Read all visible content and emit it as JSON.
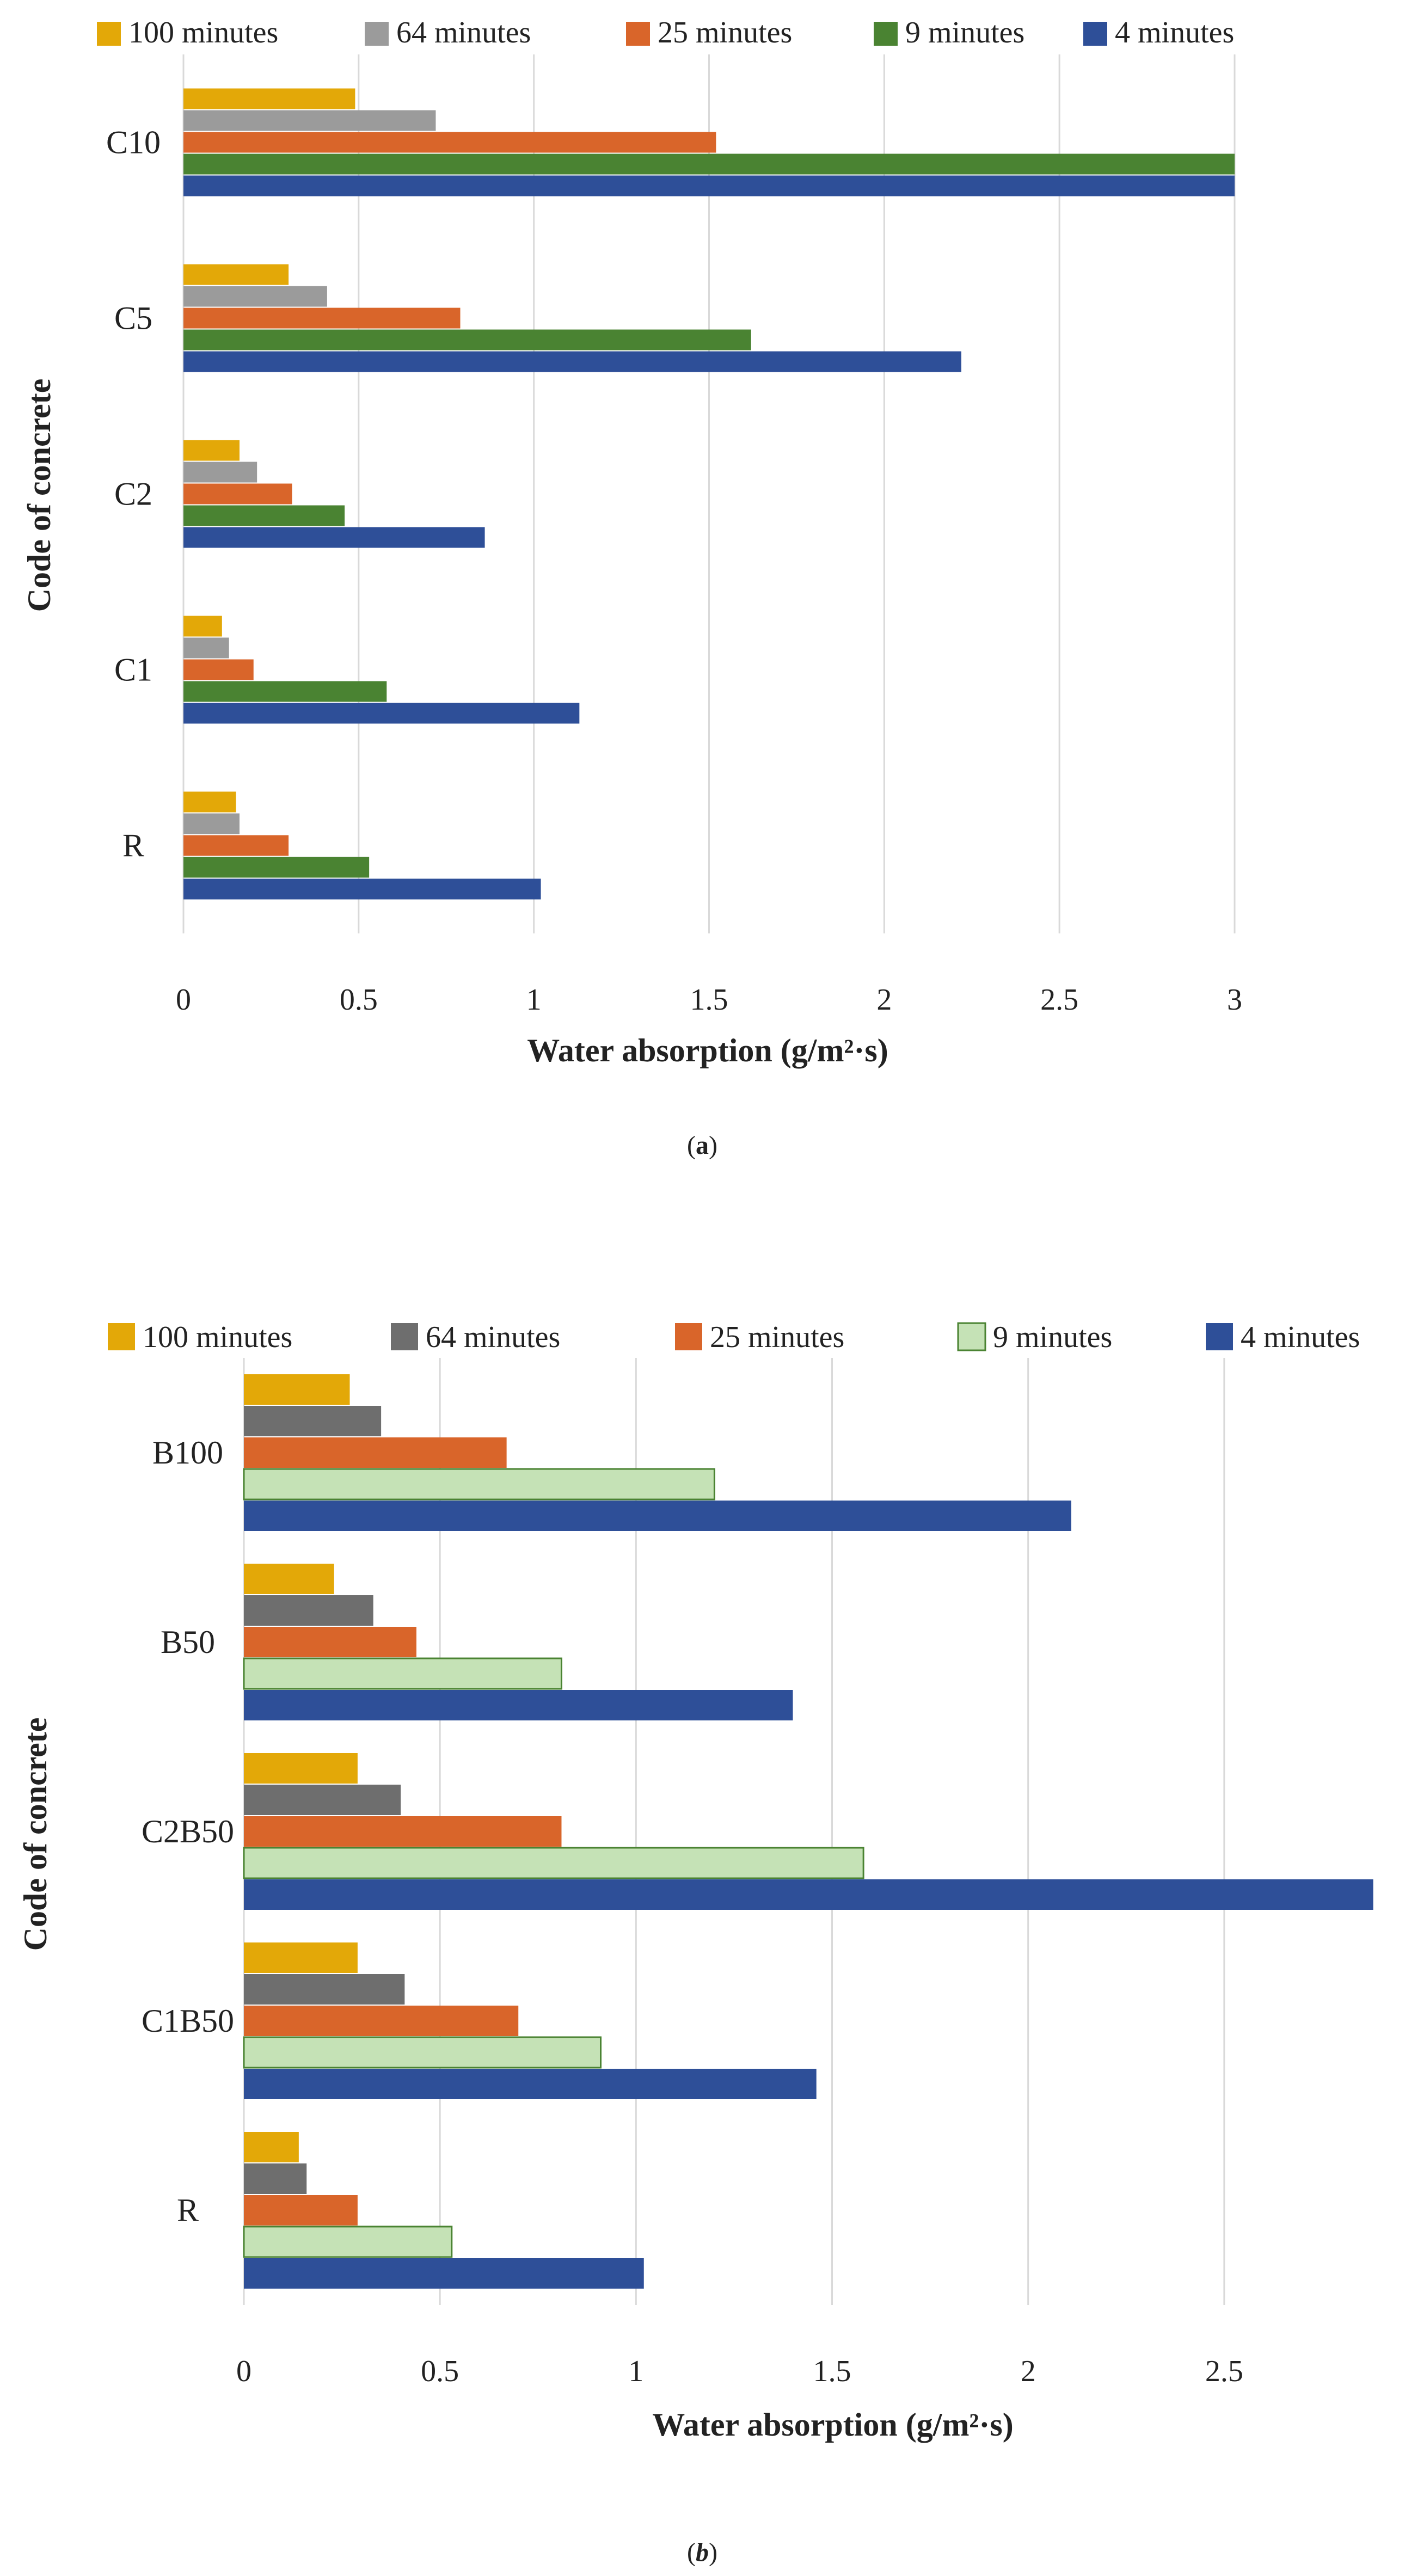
{
  "colors": {
    "min100": "#E3A808",
    "min64_a": "#9B9B9B",
    "min64_b": "#6E6E6E",
    "min25": "#D9652A",
    "min9_a": "#4A8332",
    "min9_b": "#C5E2B6",
    "min4": "#2E4F98"
  },
  "chart_data": [
    {
      "type": "bar",
      "orientation": "horizontal",
      "panel": "a",
      "caption_open": "(",
      "caption_letter": "a",
      "caption_close": ")",
      "xlabel": "Water absorption (g/m²·s)",
      "ylabel": "Code of concrete",
      "xlim": [
        0,
        3
      ],
      "xticks": [
        "0",
        "0.5",
        "1",
        "1.5",
        "2",
        "2.5",
        "3"
      ],
      "xtick_values": [
        0,
        0.5,
        1,
        1.5,
        2,
        2.5,
        3
      ],
      "legend_position": "top",
      "categories": [
        "C10",
        "C5",
        "C2",
        "C1",
        "R"
      ],
      "series": [
        {
          "name": "100 minutes",
          "color_key": "min100",
          "values": [
            0.49,
            0.3,
            0.16,
            0.11,
            0.15
          ]
        },
        {
          "name": "64 minutes",
          "color_key": "min64_a",
          "values": [
            0.72,
            0.41,
            0.21,
            0.13,
            0.16
          ]
        },
        {
          "name": "25 minutes",
          "color_key": "min25",
          "values": [
            1.52,
            0.79,
            0.31,
            0.2,
            0.3
          ]
        },
        {
          "name": "9 minutes",
          "color_key": "min9_a",
          "values": [
            3.0,
            1.62,
            0.46,
            0.58,
            0.53
          ]
        },
        {
          "name": "4 minutes",
          "color_key": "min4",
          "values": [
            3.0,
            2.22,
            0.86,
            1.13,
            1.02
          ]
        }
      ]
    },
    {
      "type": "bar",
      "orientation": "horizontal",
      "panel": "b",
      "caption_open": "(",
      "caption_letter": "b",
      "caption_close": ")",
      "xlabel": "Water absorption (g/m²·s)",
      "ylabel": "Code of concrete",
      "xlim": [
        0,
        2.9
      ],
      "xticks": [
        "0",
        "0.5",
        "1",
        "1.5",
        "2",
        "2.5"
      ],
      "xtick_values": [
        0,
        0.5,
        1,
        1.5,
        2,
        2.5
      ],
      "legend_position": "top",
      "categories": [
        "B100",
        "B50",
        "C2B50",
        "C1B50",
        "R"
      ],
      "series": [
        {
          "name": "100 minutes",
          "color_key": "min100",
          "values": [
            0.27,
            0.23,
            0.29,
            0.29,
            0.14
          ]
        },
        {
          "name": "64 minutes",
          "color_key": "min64_b",
          "values": [
            0.35,
            0.33,
            0.4,
            0.41,
            0.16
          ]
        },
        {
          "name": "25 minutes",
          "color_key": "min25",
          "values": [
            0.67,
            0.44,
            0.81,
            0.7,
            0.29
          ]
        },
        {
          "name": "9 minutes",
          "color_key": "min9_b",
          "values": [
            1.2,
            0.81,
            1.58,
            0.91,
            0.53
          ]
        },
        {
          "name": "4 minutes",
          "color_key": "min4",
          "values": [
            2.11,
            1.4,
            2.88,
            1.46,
            1.02
          ]
        }
      ]
    }
  ]
}
